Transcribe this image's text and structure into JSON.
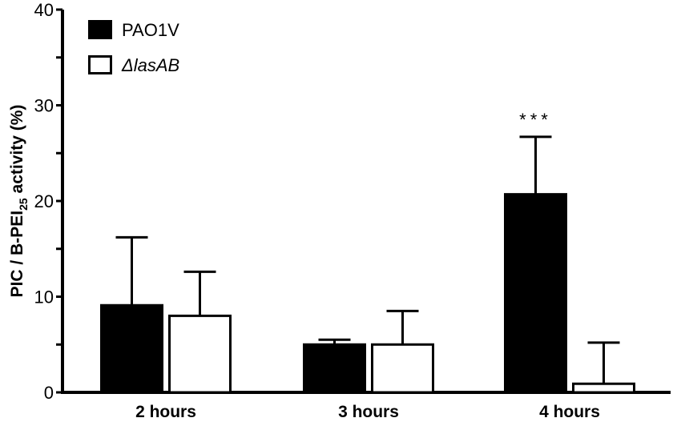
{
  "chart_data": {
    "type": "bar",
    "title": "",
    "xlabel": "",
    "ylabel": "PIC / B-PEI",
    "ylabel_subscript": "25",
    "ylabel_suffix": " activity (%)",
    "ylim": [
      0,
      40
    ],
    "yticks": [
      "0",
      "10",
      "20",
      "30",
      "40"
    ],
    "categories": [
      "2 hours",
      "3 hours",
      "4 hours"
    ],
    "legend_position": "top-left",
    "series": [
      {
        "name": "PAO1V",
        "italic": false,
        "fill": "#000000",
        "values": [
          9.1,
          5.0,
          20.7
        ],
        "error": [
          7.1,
          0.5,
          6.0
        ]
      },
      {
        "name": "ΔlasAB",
        "italic": true,
        "fill": "#ffffff",
        "values": [
          8.0,
          5.0,
          0.9
        ],
        "error": [
          4.6,
          3.5,
          4.3
        ]
      }
    ],
    "annotations": [
      {
        "category": "4 hours",
        "series": "PAO1V",
        "text": "***"
      }
    ]
  }
}
